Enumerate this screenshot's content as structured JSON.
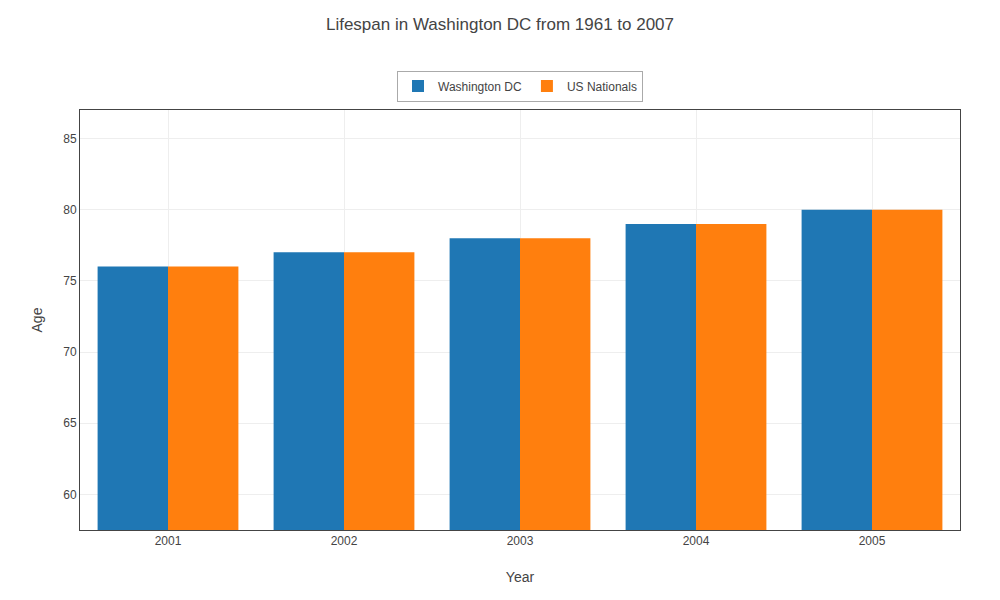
{
  "chart_data": {
    "type": "bar",
    "title": "Lifespan in Washington DC from 1961 to 2007",
    "xlabel": "Year",
    "ylabel": "Age",
    "categories": [
      "2001",
      "2002",
      "2003",
      "2004",
      "2005"
    ],
    "series": [
      {
        "name": "Washington DC",
        "values": [
          76,
          77,
          78,
          79,
          80
        ]
      },
      {
        "name": "US Nationals",
        "values": [
          76,
          77,
          78,
          79,
          80
        ]
      }
    ],
    "ylim": [
      57.5,
      87
    ],
    "yticks": [
      60,
      65,
      70,
      75,
      80,
      85
    ],
    "grid": true,
    "legend": "upper center"
  }
}
